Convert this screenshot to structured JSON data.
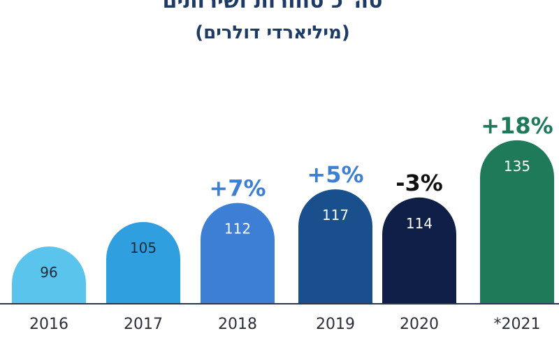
{
  "chart_data": {
    "type": "bar",
    "title": "סה\"כ סחורות ושירותים",
    "subtitle": "(מיליארדי דולרים)",
    "xlabel": "",
    "ylabel": "",
    "categories": [
      "2016",
      "2017",
      "2018",
      "2019",
      "2020",
      "*2021"
    ],
    "values": [
      96,
      105,
      112,
      117,
      114,
      135
    ],
    "value_labels": [
      "96",
      "105",
      "112",
      "117",
      "114",
      "135"
    ],
    "annotations": [
      "",
      "",
      "+7%",
      "+5%",
      "-3%",
      "+18%"
    ],
    "bar_colors": [
      "#5bc4ec",
      "#2f9fe0",
      "#3e7fd6",
      "#1a4f8e",
      "#0f1f47",
      "#1f7a5a"
    ],
    "value_label_colors": [
      "#1e2a3a",
      "#1e2a3a",
      "#ffffff",
      "#ffffff",
      "#ffffff",
      "#ffffff"
    ],
    "annotation_colors": [
      "#3e7fd6",
      "#3e7fd6",
      "#3e7fd6",
      "#3e7fd6",
      "#111111",
      "#1f7a5a"
    ],
    "ylim": [
      0,
      140
    ],
    "grid": false,
    "legend": "none",
    "bar_shape": "rounded-top"
  }
}
